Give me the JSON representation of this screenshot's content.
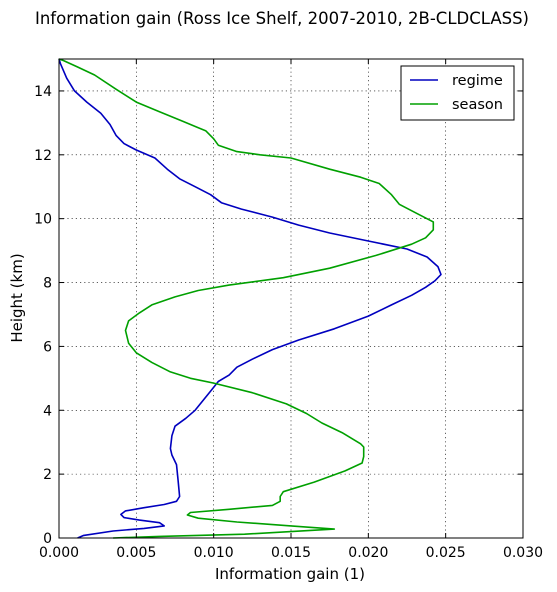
{
  "chart_data": {
    "type": "line",
    "title": "Information gain (Ross Ice Shelf, 2007-2010, 2B-CLDCLASS)",
    "xlabel": "Information gain (1)",
    "ylabel": "Height (km)",
    "xlim": [
      0,
      0.03
    ],
    "ylim": [
      0,
      15
    ],
    "xticks": [
      "0.000",
      "0.005",
      "0.010",
      "0.015",
      "0.020",
      "0.025",
      "0.030"
    ],
    "yticks": [
      "0",
      "2",
      "4",
      "6",
      "8",
      "10",
      "12",
      "14"
    ],
    "grid": true,
    "legend_position": "top-right",
    "series": [
      {
        "name": "regime",
        "color": "#0000bf",
        "points": [
          [
            0.0012,
            0.0
          ],
          [
            0.0016,
            0.08
          ],
          [
            0.0035,
            0.22
          ],
          [
            0.0055,
            0.3
          ],
          [
            0.0068,
            0.38
          ],
          [
            0.0065,
            0.48
          ],
          [
            0.0052,
            0.56
          ],
          [
            0.0042,
            0.64
          ],
          [
            0.004,
            0.74
          ],
          [
            0.0043,
            0.85
          ],
          [
            0.0055,
            0.95
          ],
          [
            0.0068,
            1.05
          ],
          [
            0.0076,
            1.15
          ],
          [
            0.0078,
            1.3
          ],
          [
            0.0077,
            1.8
          ],
          [
            0.0076,
            2.3
          ],
          [
            0.0073,
            2.6
          ],
          [
            0.0072,
            2.8
          ],
          [
            0.0073,
            3.2
          ],
          [
            0.0075,
            3.5
          ],
          [
            0.0082,
            3.75
          ],
          [
            0.0088,
            4.0
          ],
          [
            0.0093,
            4.3
          ],
          [
            0.0098,
            4.6
          ],
          [
            0.0103,
            4.9
          ],
          [
            0.011,
            5.1
          ],
          [
            0.0115,
            5.35
          ],
          [
            0.0125,
            5.6
          ],
          [
            0.0138,
            5.9
          ],
          [
            0.0155,
            6.2
          ],
          [
            0.0178,
            6.55
          ],
          [
            0.02,
            6.95
          ],
          [
            0.0215,
            7.3
          ],
          [
            0.0228,
            7.6
          ],
          [
            0.0237,
            7.85
          ],
          [
            0.0243,
            8.05
          ],
          [
            0.0247,
            8.25
          ],
          [
            0.0245,
            8.5
          ],
          [
            0.0238,
            8.8
          ],
          [
            0.0225,
            9.05
          ],
          [
            0.02,
            9.3
          ],
          [
            0.0175,
            9.55
          ],
          [
            0.0155,
            9.8
          ],
          [
            0.0138,
            10.05
          ],
          [
            0.0118,
            10.3
          ],
          [
            0.0105,
            10.5
          ],
          [
            0.0098,
            10.75
          ],
          [
            0.0088,
            11.0
          ],
          [
            0.0078,
            11.25
          ],
          [
            0.007,
            11.55
          ],
          [
            0.0062,
            11.9
          ],
          [
            0.005,
            12.15
          ],
          [
            0.0042,
            12.35
          ],
          [
            0.0037,
            12.6
          ],
          [
            0.0033,
            12.95
          ],
          [
            0.0027,
            13.3
          ],
          [
            0.0018,
            13.65
          ],
          [
            0.001,
            14.0
          ],
          [
            0.0005,
            14.4
          ],
          [
            0.0001,
            14.85
          ],
          [
            0.0,
            15.0
          ]
        ]
      },
      {
        "name": "season",
        "color": "#00a000",
        "points": [
          [
            0.0035,
            0.0
          ],
          [
            0.0065,
            0.05
          ],
          [
            0.012,
            0.12
          ],
          [
            0.0178,
            0.28
          ],
          [
            0.015,
            0.38
          ],
          [
            0.0115,
            0.5
          ],
          [
            0.009,
            0.62
          ],
          [
            0.0083,
            0.72
          ],
          [
            0.0085,
            0.8
          ],
          [
            0.011,
            0.9
          ],
          [
            0.0138,
            1.02
          ],
          [
            0.0143,
            1.15
          ],
          [
            0.0143,
            1.3
          ],
          [
            0.0145,
            1.45
          ],
          [
            0.0165,
            1.75
          ],
          [
            0.0185,
            2.1
          ],
          [
            0.0196,
            2.35
          ],
          [
            0.0197,
            2.55
          ],
          [
            0.0197,
            2.85
          ],
          [
            0.0195,
            2.95
          ],
          [
            0.0183,
            3.3
          ],
          [
            0.017,
            3.6
          ],
          [
            0.016,
            3.9
          ],
          [
            0.0147,
            4.2
          ],
          [
            0.0125,
            4.55
          ],
          [
            0.01,
            4.85
          ],
          [
            0.0085,
            5.0
          ],
          [
            0.0072,
            5.2
          ],
          [
            0.006,
            5.5
          ],
          [
            0.005,
            5.8
          ],
          [
            0.0045,
            6.1
          ],
          [
            0.0043,
            6.5
          ],
          [
            0.0045,
            6.8
          ],
          [
            0.0052,
            7.05
          ],
          [
            0.006,
            7.3
          ],
          [
            0.0075,
            7.55
          ],
          [
            0.009,
            7.75
          ],
          [
            0.011,
            7.92
          ],
          [
            0.0145,
            8.15
          ],
          [
            0.0175,
            8.45
          ],
          [
            0.0205,
            8.85
          ],
          [
            0.0228,
            9.2
          ],
          [
            0.0237,
            9.4
          ],
          [
            0.0242,
            9.65
          ],
          [
            0.0242,
            9.9
          ],
          [
            0.0232,
            10.15
          ],
          [
            0.022,
            10.45
          ],
          [
            0.0215,
            10.75
          ],
          [
            0.0207,
            11.1
          ],
          [
            0.0195,
            11.3
          ],
          [
            0.0175,
            11.55
          ],
          [
            0.015,
            11.9
          ],
          [
            0.013,
            12.0
          ],
          [
            0.0115,
            12.1
          ],
          [
            0.0103,
            12.3
          ],
          [
            0.01,
            12.5
          ],
          [
            0.0095,
            12.75
          ],
          [
            0.008,
            13.05
          ],
          [
            0.0065,
            13.35
          ],
          [
            0.005,
            13.65
          ],
          [
            0.0037,
            14.05
          ],
          [
            0.0023,
            14.5
          ],
          [
            0.0012,
            14.75
          ],
          [
            0.0003,
            14.95
          ],
          [
            0.0,
            15.0
          ]
        ]
      }
    ]
  }
}
